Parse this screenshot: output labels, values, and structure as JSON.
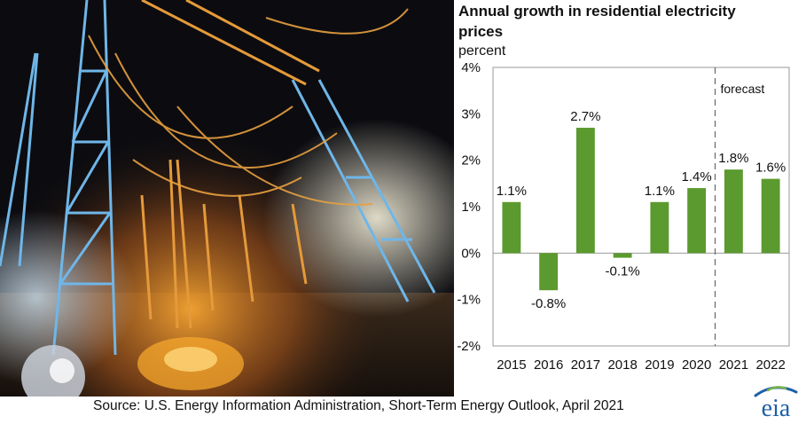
{
  "chart_data": {
    "type": "bar",
    "title_line1": "Annual growth in residential electricity",
    "title_line2": "prices",
    "ylabel": "percent",
    "categories": [
      "2015",
      "2016",
      "2017",
      "2018",
      "2019",
      "2020",
      "2021",
      "2022"
    ],
    "values": [
      1.1,
      -0.8,
      2.7,
      -0.1,
      1.1,
      1.4,
      1.8,
      1.6
    ],
    "data_labels": [
      "1.1%",
      "-0.8%",
      "2.7%",
      "-0.1%",
      "1.1%",
      "1.4%",
      "1.8%",
      "1.6%"
    ],
    "ylim": [
      -2,
      4
    ],
    "yticks": [
      4,
      3,
      2,
      1,
      0,
      -1,
      -2
    ],
    "ytick_labels": [
      "4%",
      "3%",
      "2%",
      "1%",
      "0%",
      "-1%",
      "-2%"
    ],
    "annotation": "forecast",
    "forecast_start_after": "2020",
    "bar_color": "#5b9a2e",
    "grid": false
  },
  "source_text": "Source: U.S. Energy Information Administration, Short-Term Energy Outlook, April 2021",
  "logo_text": "eia",
  "logo_color": "#1f5fa8"
}
